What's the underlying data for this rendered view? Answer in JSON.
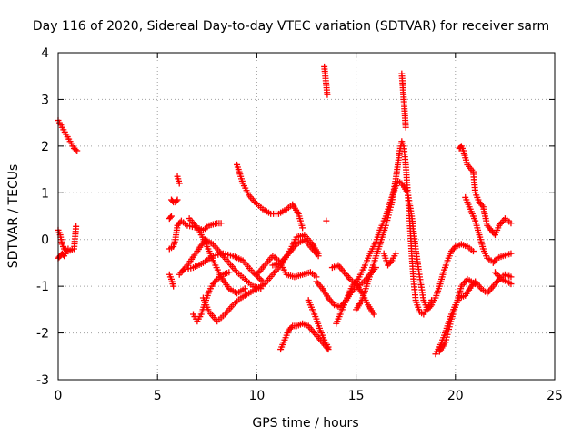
{
  "chart_data": {
    "type": "scatter",
    "title": "Day 116 of 2020, Sidereal Day-to-day VTEC variation (SDTVAR) for receiver sarm",
    "xlabel": "GPS time / hours",
    "ylabel": "SDTVAR / TECUs",
    "xlim": [
      0,
      25
    ],
    "ylim": [
      -3,
      4
    ],
    "xticks": [
      0,
      5,
      10,
      15,
      20,
      25
    ],
    "yticks": [
      -3,
      -2,
      -1,
      0,
      1,
      2,
      3,
      4
    ],
    "xtick_labels": [
      "0",
      "5",
      "10",
      "15",
      "20",
      "25"
    ],
    "ytick_labels": [
      "-3",
      "-2",
      "-1",
      "0",
      "1",
      "2",
      "3",
      "4"
    ],
    "grid": true,
    "marker": "plus",
    "color": "#ff0000",
    "series": [
      {
        "name": "s1",
        "points": [
          [
            0.0,
            2.55
          ],
          [
            0.2,
            2.4
          ],
          [
            0.4,
            2.25
          ],
          [
            0.6,
            2.1
          ],
          [
            0.8,
            1.95
          ],
          [
            0.95,
            1.9
          ]
        ]
      },
      {
        "name": "s2",
        "points": [
          [
            0.0,
            0.2
          ],
          [
            0.1,
            0.1
          ],
          [
            0.2,
            -0.1
          ],
          [
            0.3,
            -0.2
          ],
          [
            0.5,
            -0.25
          ],
          [
            0.8,
            -0.2
          ],
          [
            0.9,
            0.28
          ]
        ]
      },
      {
        "name": "s3",
        "points": [
          [
            0.0,
            -0.4
          ],
          [
            0.1,
            -0.35
          ],
          [
            0.2,
            -0.3
          ],
          [
            0.3,
            -0.35
          ],
          [
            0.5,
            -0.2
          ]
        ]
      },
      {
        "name": "s4",
        "points": [
          [
            5.7,
            0.85
          ],
          [
            5.8,
            0.8
          ],
          [
            5.9,
            0.8
          ],
          [
            6.0,
            0.85
          ]
        ]
      },
      {
        "name": "s5",
        "points": [
          [
            5.6,
            0.45
          ],
          [
            5.7,
            0.5
          ]
        ]
      },
      {
        "name": "s6",
        "points": [
          [
            5.6,
            -0.2
          ],
          [
            5.8,
            -0.15
          ],
          [
            5.9,
            0.0
          ],
          [
            6.0,
            0.3
          ],
          [
            6.2,
            0.4
          ],
          [
            6.5,
            0.3
          ],
          [
            7.0,
            0.25
          ],
          [
            7.3,
            0.2
          ],
          [
            7.6,
            0.3
          ],
          [
            8.0,
            0.35
          ],
          [
            8.2,
            0.35
          ]
        ]
      },
      {
        "name": "s7",
        "points": [
          [
            6.0,
            1.35
          ],
          [
            6.1,
            1.2
          ]
        ]
      },
      {
        "name": "s8",
        "points": [
          [
            5.6,
            -0.75
          ],
          [
            5.7,
            -0.85
          ],
          [
            5.8,
            -1.0
          ]
        ]
      },
      {
        "name": "s9",
        "points": [
          [
            6.3,
            -0.65
          ],
          [
            6.8,
            -0.6
          ],
          [
            7.3,
            -0.5
          ],
          [
            7.8,
            -0.35
          ],
          [
            8.3,
            -0.3
          ],
          [
            8.8,
            -0.35
          ],
          [
            9.3,
            -0.45
          ],
          [
            9.8,
            -0.7
          ],
          [
            10.3,
            -0.9
          ]
        ]
      },
      {
        "name": "s10",
        "points": [
          [
            6.1,
            -0.75
          ],
          [
            6.5,
            -0.55
          ],
          [
            7.0,
            -0.25
          ],
          [
            7.4,
            0.0
          ],
          [
            7.8,
            -0.1
          ],
          [
            8.2,
            -0.3
          ],
          [
            8.6,
            -0.5
          ],
          [
            9.0,
            -0.7
          ],
          [
            9.4,
            -0.85
          ],
          [
            9.8,
            -1.0
          ],
          [
            10.2,
            -1.05
          ]
        ]
      },
      {
        "name": "s11",
        "points": [
          [
            6.6,
            0.45
          ],
          [
            7.0,
            0.25
          ],
          [
            7.4,
            -0.05
          ],
          [
            7.8,
            -0.45
          ],
          [
            8.2,
            -0.8
          ],
          [
            8.6,
            -1.05
          ],
          [
            9.0,
            -1.15
          ],
          [
            9.4,
            -1.05
          ]
        ]
      },
      {
        "name": "s12",
        "points": [
          [
            6.8,
            -1.6
          ],
          [
            7.0,
            -1.75
          ],
          [
            7.2,
            -1.6
          ],
          [
            7.4,
            -1.35
          ],
          [
            7.6,
            -1.1
          ],
          [
            7.8,
            -0.95
          ],
          [
            8.0,
            -0.85
          ],
          [
            8.3,
            -0.75
          ],
          [
            8.6,
            -0.7
          ]
        ]
      },
      {
        "name": "s13",
        "points": [
          [
            7.3,
            -1.25
          ],
          [
            7.6,
            -1.55
          ],
          [
            8.0,
            -1.75
          ],
          [
            8.4,
            -1.6
          ],
          [
            8.8,
            -1.4
          ],
          [
            9.2,
            -1.25
          ],
          [
            9.6,
            -1.15
          ],
          [
            10.0,
            -1.05
          ],
          [
            10.4,
            -0.95
          ],
          [
            10.8,
            -0.75
          ],
          [
            11.2,
            -0.55
          ],
          [
            11.6,
            -0.3
          ],
          [
            12.0,
            -0.1
          ],
          [
            12.4,
            0.0
          ],
          [
            12.8,
            -0.2
          ],
          [
            13.1,
            -0.35
          ]
        ]
      },
      {
        "name": "s14",
        "points": [
          [
            9.0,
            1.6
          ],
          [
            9.3,
            1.2
          ],
          [
            9.6,
            0.95
          ],
          [
            9.9,
            0.8
          ],
          [
            10.3,
            0.65
          ],
          [
            10.7,
            0.55
          ],
          [
            11.1,
            0.55
          ],
          [
            11.5,
            0.65
          ],
          [
            11.8,
            0.75
          ],
          [
            12.1,
            0.55
          ],
          [
            12.3,
            0.25
          ]
        ]
      },
      {
        "name": "s15",
        "points": [
          [
            10.0,
            -0.75
          ],
          [
            10.4,
            -0.55
          ],
          [
            10.8,
            -0.35
          ],
          [
            11.1,
            -0.45
          ],
          [
            11.5,
            -0.75
          ],
          [
            11.9,
            -0.8
          ],
          [
            12.3,
            -0.75
          ],
          [
            12.7,
            -0.7
          ],
          [
            13.0,
            -0.8
          ]
        ]
      },
      {
        "name": "s16",
        "points": [
          [
            10.8,
            -0.55
          ],
          [
            11.2,
            -0.5
          ],
          [
            11.6,
            -0.3
          ],
          [
            12.0,
            0.05
          ],
          [
            12.4,
            0.1
          ],
          [
            12.8,
            -0.1
          ],
          [
            13.1,
            -0.3
          ]
        ]
      },
      {
        "name": "s17",
        "points": [
          [
            11.2,
            -2.35
          ],
          [
            11.4,
            -2.15
          ],
          [
            11.6,
            -1.95
          ],
          [
            11.8,
            -1.85
          ],
          [
            12.0,
            -1.85
          ],
          [
            12.3,
            -1.8
          ],
          [
            12.6,
            -1.85
          ],
          [
            12.9,
            -2.0
          ],
          [
            13.2,
            -2.15
          ],
          [
            13.5,
            -2.3
          ],
          [
            13.6,
            -2.35
          ]
        ]
      },
      {
        "name": "s18",
        "points": [
          [
            12.6,
            -1.3
          ],
          [
            12.8,
            -1.5
          ],
          [
            13.0,
            -1.7
          ],
          [
            13.2,
            -1.95
          ],
          [
            13.4,
            -2.15
          ],
          [
            13.6,
            -2.3
          ]
        ]
      },
      {
        "name": "s19",
        "points": [
          [
            13.0,
            -0.9
          ],
          [
            13.3,
            -1.05
          ],
          [
            13.6,
            -1.25
          ],
          [
            13.9,
            -1.4
          ],
          [
            14.2,
            -1.45
          ],
          [
            14.5,
            -1.3
          ],
          [
            14.8,
            -1.1
          ],
          [
            15.1,
            -1.0
          ],
          [
            15.4,
            -0.9
          ],
          [
            15.7,
            -0.75
          ],
          [
            16.0,
            -0.6
          ]
        ]
      },
      {
        "name": "s20",
        "points": [
          [
            13.4,
            3.7
          ],
          [
            13.45,
            3.5
          ],
          [
            13.5,
            3.3
          ],
          [
            13.55,
            3.1
          ]
        ]
      },
      {
        "name": "s21",
        "points": [
          [
            13.5,
            0.4
          ]
        ]
      },
      {
        "name": "s22",
        "points": [
          [
            13.8,
            -0.6
          ],
          [
            14.1,
            -0.55
          ],
          [
            14.4,
            -0.7
          ],
          [
            14.7,
            -0.85
          ],
          [
            15.0,
            -0.95
          ],
          [
            15.3,
            -1.15
          ],
          [
            15.6,
            -1.4
          ],
          [
            15.9,
            -1.6
          ]
        ]
      },
      {
        "name": "s23",
        "points": [
          [
            14.0,
            -1.8
          ],
          [
            14.2,
            -1.6
          ],
          [
            14.5,
            -1.3
          ],
          [
            14.8,
            -1.0
          ],
          [
            15.1,
            -0.85
          ],
          [
            15.4,
            -0.6
          ],
          [
            15.7,
            -0.3
          ],
          [
            16.0,
            -0.05
          ],
          [
            16.2,
            0.2
          ],
          [
            16.5,
            0.5
          ],
          [
            16.8,
            0.9
          ],
          [
            17.1,
            1.25
          ],
          [
            17.3,
            1.2
          ],
          [
            17.6,
            1.0
          ],
          [
            17.8,
            0.5
          ],
          [
            18.0,
            -0.2
          ],
          [
            18.2,
            -0.8
          ],
          [
            18.4,
            -1.3
          ],
          [
            18.6,
            -1.5
          ],
          [
            18.8,
            -1.4
          ],
          [
            19.0,
            -1.25
          ],
          [
            19.2,
            -1.0
          ],
          [
            19.4,
            -0.7
          ],
          [
            19.6,
            -0.45
          ],
          [
            19.8,
            -0.25
          ],
          [
            20.0,
            -0.15
          ],
          [
            20.3,
            -0.1
          ],
          [
            20.6,
            -0.15
          ],
          [
            20.9,
            -0.25
          ]
        ]
      },
      {
        "name": "s24",
        "points": [
          [
            15.0,
            -1.5
          ],
          [
            15.3,
            -1.3
          ],
          [
            15.6,
            -0.9
          ],
          [
            15.9,
            -0.5
          ],
          [
            16.2,
            -0.1
          ],
          [
            16.5,
            0.3
          ],
          [
            16.8,
            0.8
          ],
          [
            17.0,
            1.3
          ],
          [
            17.1,
            1.6
          ],
          [
            17.2,
            1.9
          ],
          [
            17.3,
            2.1
          ],
          [
            17.4,
            2.0
          ],
          [
            17.5,
            1.6
          ],
          [
            17.6,
            1.0
          ],
          [
            17.7,
            0.4
          ],
          [
            17.8,
            -0.3
          ],
          [
            17.9,
            -0.9
          ],
          [
            18.0,
            -1.3
          ],
          [
            18.2,
            -1.55
          ],
          [
            18.4,
            -1.6
          ],
          [
            18.6,
            -1.45
          ],
          [
            18.8,
            -1.3
          ]
        ]
      },
      {
        "name": "s25",
        "points": [
          [
            17.3,
            3.55
          ],
          [
            17.35,
            3.3
          ],
          [
            17.4,
            3.0
          ],
          [
            17.45,
            2.7
          ],
          [
            17.5,
            2.4
          ]
        ]
      },
      {
        "name": "s26",
        "points": [
          [
            16.4,
            -0.3
          ],
          [
            16.6,
            -0.55
          ],
          [
            16.8,
            -0.45
          ],
          [
            17.0,
            -0.3
          ]
        ]
      },
      {
        "name": "s27",
        "points": [
          [
            19.0,
            -2.45
          ],
          [
            19.2,
            -2.3
          ],
          [
            19.4,
            -2.1
          ],
          [
            19.6,
            -1.85
          ],
          [
            19.8,
            -1.6
          ],
          [
            20.0,
            -1.4
          ],
          [
            20.2,
            -1.25
          ],
          [
            20.5,
            -1.2
          ],
          [
            20.8,
            -1.0
          ],
          [
            21.0,
            -0.9
          ],
          [
            21.3,
            -1.05
          ],
          [
            21.6,
            -1.15
          ],
          [
            21.9,
            -1.0
          ],
          [
            22.2,
            -0.85
          ],
          [
            22.5,
            -0.75
          ],
          [
            22.8,
            -0.8
          ]
        ]
      },
      {
        "name": "s28",
        "points": [
          [
            19.2,
            -2.4
          ],
          [
            19.5,
            -2.2
          ],
          [
            19.8,
            -1.7
          ],
          [
            20.1,
            -1.3
          ],
          [
            20.3,
            -1.0
          ],
          [
            20.6,
            -0.85
          ],
          [
            21.0,
            -0.95
          ]
        ]
      },
      {
        "name": "s29",
        "points": [
          [
            20.2,
            1.95
          ],
          [
            20.3,
            2.0
          ],
          [
            20.4,
            1.9
          ],
          [
            20.6,
            1.6
          ],
          [
            20.9,
            1.45
          ],
          [
            21.0,
            1.0
          ],
          [
            21.2,
            0.8
          ],
          [
            21.4,
            0.7
          ],
          [
            21.6,
            0.3
          ],
          [
            21.8,
            0.2
          ],
          [
            22.0,
            0.1
          ],
          [
            22.2,
            0.3
          ],
          [
            22.5,
            0.45
          ],
          [
            22.8,
            0.35
          ]
        ]
      },
      {
        "name": "s30",
        "points": [
          [
            20.5,
            0.9
          ],
          [
            20.7,
            0.7
          ],
          [
            21.0,
            0.4
          ],
          [
            21.2,
            0.1
          ],
          [
            21.4,
            -0.2
          ],
          [
            21.6,
            -0.4
          ],
          [
            21.8,
            -0.45
          ]
        ]
      },
      {
        "name": "s31",
        "points": [
          [
            21.9,
            -0.5
          ],
          [
            22.1,
            -0.4
          ],
          [
            22.4,
            -0.35
          ],
          [
            22.8,
            -0.3
          ]
        ]
      },
      {
        "name": "s32",
        "points": [
          [
            22.0,
            -0.7
          ],
          [
            22.3,
            -0.85
          ],
          [
            22.6,
            -0.9
          ],
          [
            22.8,
            -0.95
          ]
        ]
      }
    ]
  }
}
